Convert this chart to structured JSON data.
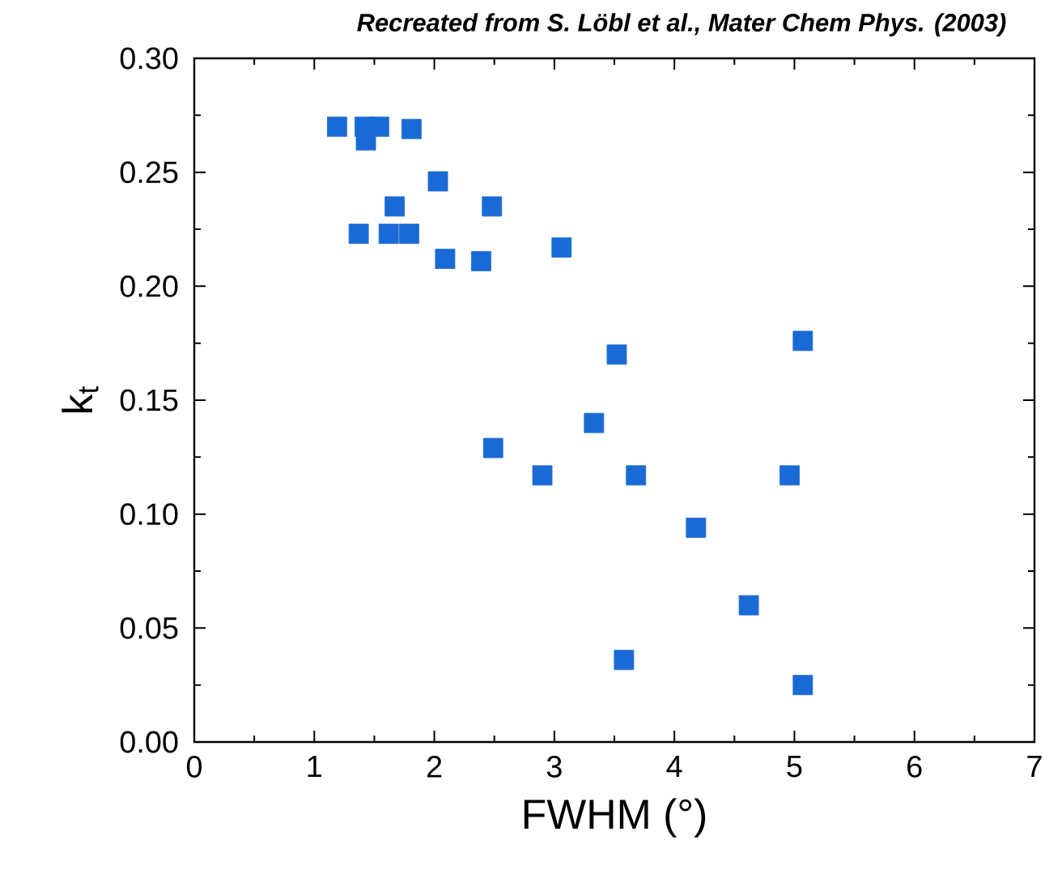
{
  "chart_data": {
    "type": "scatter",
    "title": "Recreated from S. Löbl et al., Mater Chem Phys. (2003)",
    "xlabel": "FWHM (°)",
    "ylabel": "k$_{t}$",
    "xlim": [
      0,
      7
    ],
    "ylim": [
      0,
      0.3
    ],
    "xticks": [
      0,
      1,
      2,
      3,
      4,
      5,
      6,
      7
    ],
    "yticks": [
      {
        "value": 0,
        "label": "0.00"
      },
      {
        "value": 0.05,
        "label": "0.05"
      },
      {
        "value": 0.1,
        "label": "0.10"
      },
      {
        "value": 0.15,
        "label": "0.15"
      },
      {
        "value": 0.2,
        "label": "0.20"
      },
      {
        "value": 0.25,
        "label": "0.25"
      },
      {
        "value": 0.3,
        "label": "0.30"
      }
    ],
    "marker": "square",
    "series": [
      {
        "color": "#1a6ad6",
        "x": [
          1.19,
          1.42,
          1.43,
          1.54,
          1.81,
          2.03,
          1.67,
          2.48,
          1.37,
          1.62,
          1.79,
          2.09,
          2.39,
          3.06,
          3.52,
          2.49,
          3.33,
          2.9,
          3.68,
          4.96,
          5.07,
          4.18,
          4.62,
          3.58,
          5.07
        ],
        "values": [
          0.27,
          0.27,
          0.264,
          0.27,
          0.269,
          0.246,
          0.235,
          0.235,
          0.223,
          0.223,
          0.223,
          0.212,
          0.211,
          0.217,
          0.17,
          0.129,
          0.14,
          0.117,
          0.117,
          0.117,
          0.176,
          0.094,
          0.06,
          0.036,
          0.025
        ]
      }
    ]
  }
}
